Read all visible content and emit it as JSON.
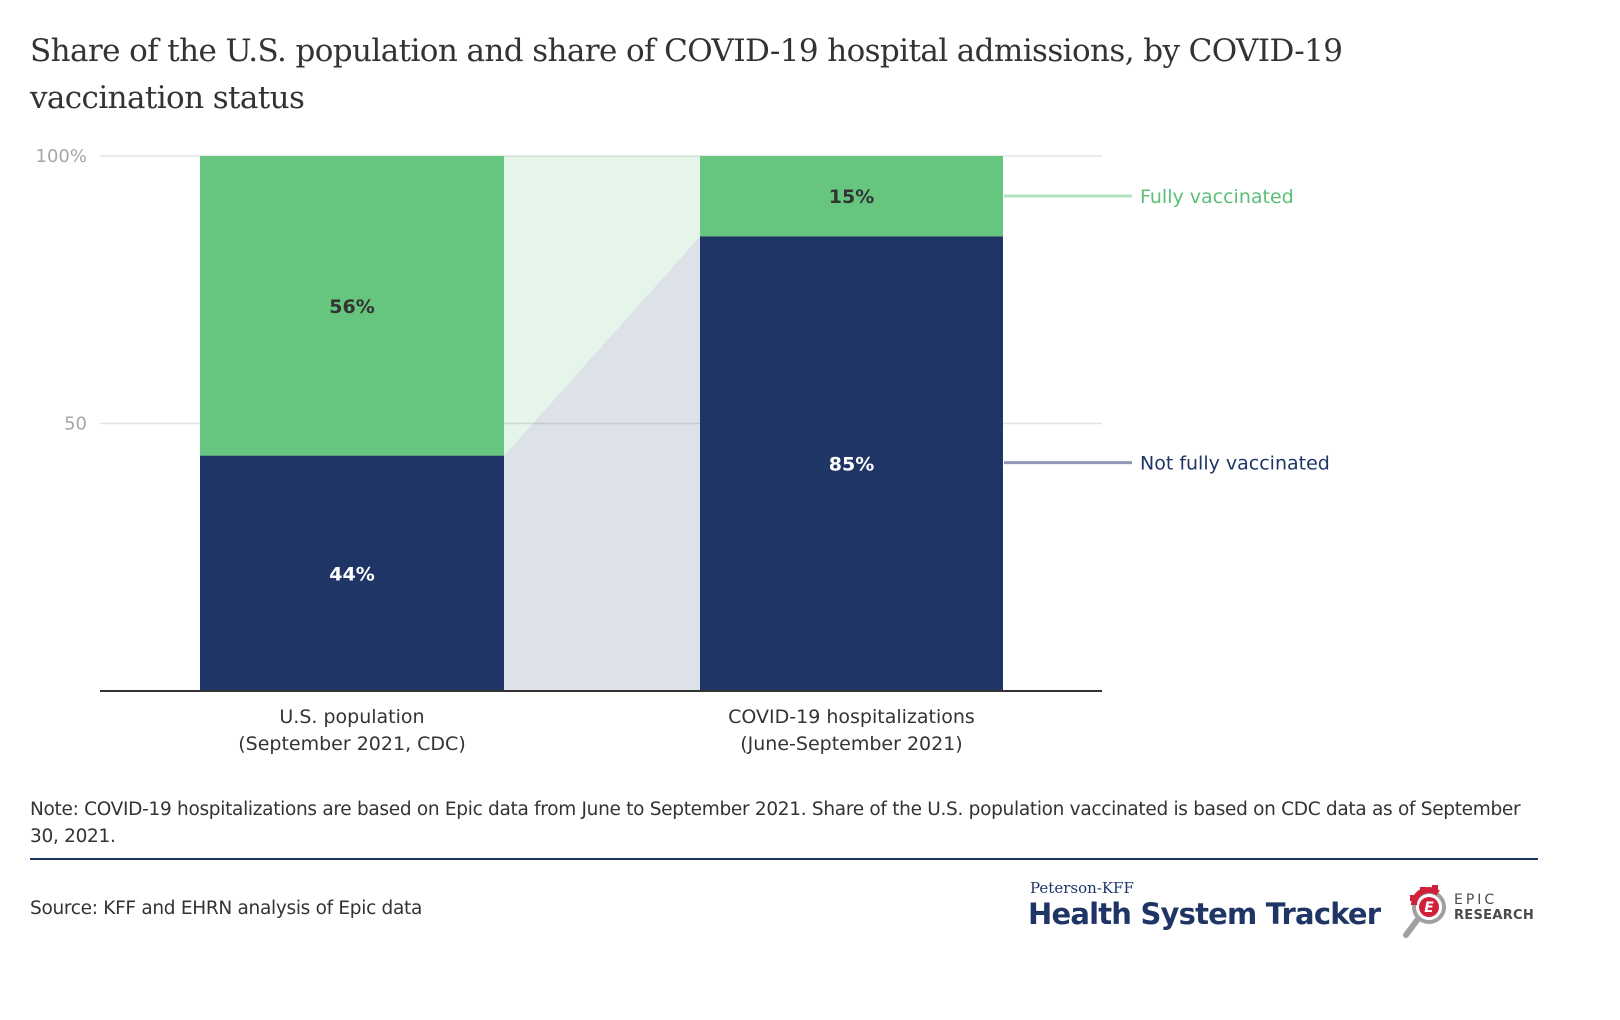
{
  "title": "Share of the U.S. population and share of COVID-19 hospital admissions, by COVID-19 vaccination status",
  "chart_data": {
    "type": "bar",
    "subtype": "stacked-100",
    "title": "Share of the U.S. population and share of COVID-19 hospital admissions, by COVID-19 vaccination status",
    "xlabel": "",
    "ylabel": "",
    "ylim": [
      0,
      100
    ],
    "yticks": [
      {
        "value": 50,
        "label": "50"
      },
      {
        "value": 100,
        "label": "100%"
      }
    ],
    "grid": true,
    "categories": [
      {
        "line1": "U.S. population",
        "line2": "(September 2021, CDC)"
      },
      {
        "line1": "COVID-19 hospitalizations",
        "line2": "(June-September 2021)"
      }
    ],
    "series": [
      {
        "name": "Not fully vaccinated",
        "values": [
          44,
          85
        ],
        "labels": [
          "44%",
          "85%"
        ],
        "color": "#1f3566",
        "label_color": "#ffffff",
        "band_color": "#dde1e8",
        "legend_line_color": "#8f9bb5"
      },
      {
        "name": "Fully vaccinated",
        "values": [
          56,
          15
        ],
        "labels": [
          "56%",
          "15%"
        ],
        "color": "#66c67f",
        "label_color": "#333333",
        "band_color": "#e5f5ea",
        "legend_line_color": "#b3e2bf"
      }
    ],
    "legend_placement": "right (direct labels)"
  },
  "note": "Note: COVID-19 hospitalizations are based on Epic data from June to September 2021. Share of the U.S. population vaccinated is based on CDC data as of September 30, 2021.",
  "source": "Source: KFF and EHRN analysis of Epic data",
  "logos": {
    "peterson": "Peterson-KFF",
    "tracker": "Health System Tracker",
    "epic_line1": "EPIC",
    "epic_line2": "RESEARCH",
    "epic_letter": "E"
  }
}
